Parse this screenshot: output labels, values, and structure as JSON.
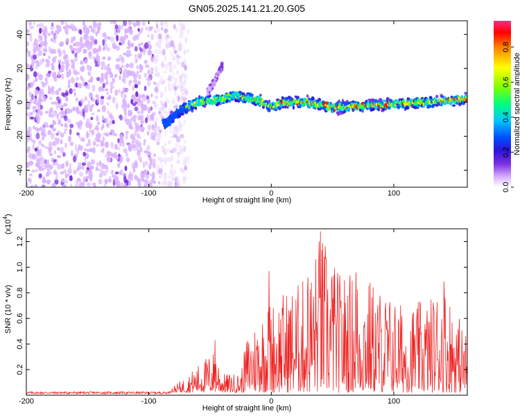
{
  "title": "GN05.2025.141.21.20.G05",
  "chart_data": [
    {
      "type": "heatmap",
      "xlabel": "Height of straight line (km)",
      "ylabel": "Frequency (Hz)",
      "xlim": [
        -200,
        160
      ],
      "ylim": [
        -50,
        48
      ],
      "xticks": [
        -200,
        -100,
        0,
        100
      ],
      "yticks": [
        -40,
        -20,
        0,
        20,
        40
      ],
      "ridge": [
        {
          "x": -85,
          "y": -12
        },
        {
          "x": -75,
          "y": -5
        },
        {
          "x": -60,
          "y": 0
        },
        {
          "x": -40,
          "y": 2
        },
        {
          "x": -30,
          "y": 4
        },
        {
          "x": -10,
          "y": 1
        },
        {
          "x": 0,
          "y": -3
        },
        {
          "x": 10,
          "y": 0
        },
        {
          "x": 30,
          "y": 0
        },
        {
          "x": 50,
          "y": -3
        },
        {
          "x": 80,
          "y": -2
        },
        {
          "x": 100,
          "y": -1
        },
        {
          "x": 130,
          "y": 0
        },
        {
          "x": 160,
          "y": 2
        }
      ],
      "branch": [
        {
          "x": -52,
          "y": 6
        },
        {
          "x": -45,
          "y": 14
        },
        {
          "x": -40,
          "y": 22
        }
      ],
      "noise_region": {
        "x_from": -200,
        "x_to": -80
      },
      "colorbar": {
        "label": "Normalized spectral amplitude",
        "range": [
          0,
          0.95
        ],
        "ticks": [
          "0.0",
          "0.2",
          "0.4",
          "0.6",
          "0.8"
        ]
      },
      "colormap": [
        "#ffffff",
        "#d9b3ff",
        "#7b2fe0",
        "#2e12d8",
        "#0050ff",
        "#00c8ff",
        "#00ff80",
        "#80ff00",
        "#ffff00",
        "#ff8000",
        "#ff0000",
        "#ff2a8a"
      ]
    },
    {
      "type": "line",
      "xlabel": "Height of straight line (km)",
      "ylabel": "SNR (10 * v/v)",
      "yscale_label": "(x10",
      "yscale_exp": "4",
      "yscale_close": ")",
      "xlim": [
        -200,
        160
      ],
      "ylim": [
        0,
        1.3
      ],
      "xticks": [
        -200,
        -100,
        0,
        100
      ],
      "yticks": [
        "0.2",
        "0.4",
        "0.6",
        "0.8",
        "1.0",
        "1.2"
      ],
      "line_color": "#ee2222",
      "envelope": [
        {
          "x": -200,
          "y": 0.02
        },
        {
          "x": -90,
          "y": 0.02
        },
        {
          "x": -80,
          "y": 0.05
        },
        {
          "x": -70,
          "y": 0.12
        },
        {
          "x": -60,
          "y": 0.22
        },
        {
          "x": -45,
          "y": 0.35
        },
        {
          "x": -40,
          "y": 0.15
        },
        {
          "x": -25,
          "y": 0.15
        },
        {
          "x": -20,
          "y": 0.45
        },
        {
          "x": -5,
          "y": 0.7
        },
        {
          "x": 10,
          "y": 0.8
        },
        {
          "x": 30,
          "y": 0.92
        },
        {
          "x": 40,
          "y": 1.28
        },
        {
          "x": 55,
          "y": 0.95
        },
        {
          "x": 75,
          "y": 0.95
        },
        {
          "x": 90,
          "y": 0.82
        },
        {
          "x": 110,
          "y": 0.68
        },
        {
          "x": 130,
          "y": 0.75
        },
        {
          "x": 140,
          "y": 0.9
        },
        {
          "x": 160,
          "y": 0.45
        }
      ],
      "peaks": [
        {
          "x": 40,
          "y": 1.28
        },
        {
          "x": -2,
          "y": 0.97
        },
        {
          "x": 30,
          "y": 0.92
        },
        {
          "x": 51,
          "y": 0.94
        },
        {
          "x": 69,
          "y": 0.96
        },
        {
          "x": 141,
          "y": 0.89
        },
        {
          "x": -46,
          "y": 0.43
        }
      ]
    }
  ]
}
